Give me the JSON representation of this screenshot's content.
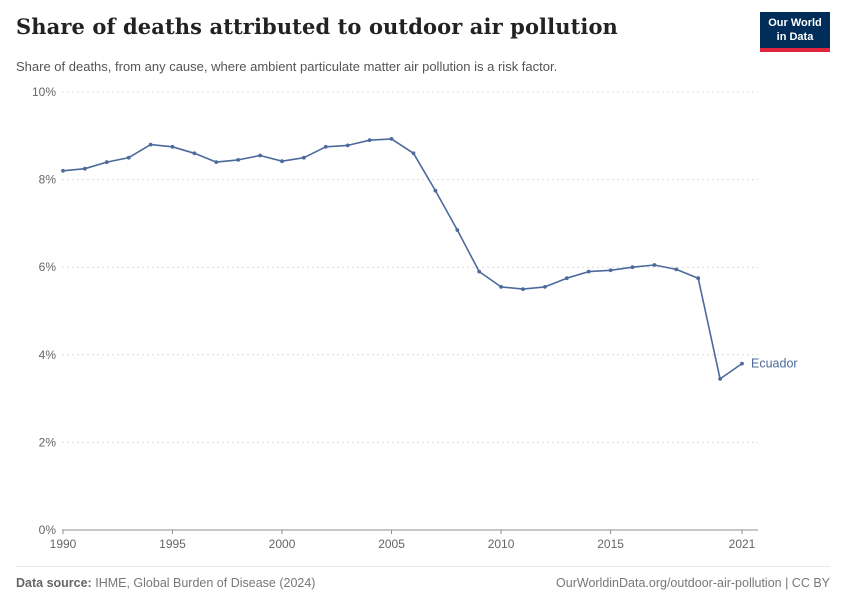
{
  "header": {
    "title": "Share of deaths attributed to outdoor air pollution",
    "subtitle": "Share of deaths, from any cause, where ambient particulate matter air pollution is a risk factor.",
    "logo": {
      "line1": "Our World",
      "line2": "in Data"
    }
  },
  "colors": {
    "series_blue": "#4c6a9c",
    "logo_navy": "#002d59",
    "logo_red": "#e0243d",
    "gridline": "#dcdcdc",
    "axis": "#8f8f8f"
  },
  "chart_data": {
    "type": "line",
    "title": "Share of deaths attributed to outdoor air pollution",
    "subtitle": "Share of deaths, from any cause, where ambient particulate matter air pollution is a risk factor.",
    "xlabel": "",
    "ylabel": "",
    "ylim": [
      0,
      10
    ],
    "yticks": [
      0,
      2,
      4,
      6,
      8,
      10
    ],
    "ytick_suffix": "%",
    "xticks": [
      1990,
      1995,
      2000,
      2005,
      2010,
      2015,
      2021
    ],
    "grid": "dashed-horizontal",
    "legend_position": "end-of-line-label",
    "series": [
      {
        "name": "Ecuador",
        "color": "#4c6a9c",
        "x": [
          1990,
          1991,
          1992,
          1993,
          1994,
          1995,
          1996,
          1997,
          1998,
          1999,
          2000,
          2001,
          2002,
          2003,
          2004,
          2005,
          2006,
          2007,
          2008,
          2009,
          2010,
          2011,
          2012,
          2013,
          2014,
          2015,
          2016,
          2017,
          2018,
          2019,
          2020,
          2021
        ],
        "values": [
          8.2,
          8.25,
          8.4,
          8.5,
          8.8,
          8.75,
          8.6,
          8.4,
          8.45,
          8.55,
          8.42,
          8.5,
          8.75,
          8.78,
          8.9,
          8.93,
          8.6,
          7.75,
          6.85,
          5.9,
          5.55,
          5.5,
          5.55,
          5.75,
          5.9,
          5.93,
          6.0,
          6.05,
          5.95,
          5.75,
          3.45,
          3.8
        ]
      }
    ]
  },
  "footer": {
    "source_label": "Data source:",
    "source_value": "IHME, Global Burden of Disease (2024)",
    "right": "OurWorldinData.org/outdoor-air-pollution | CC BY"
  }
}
